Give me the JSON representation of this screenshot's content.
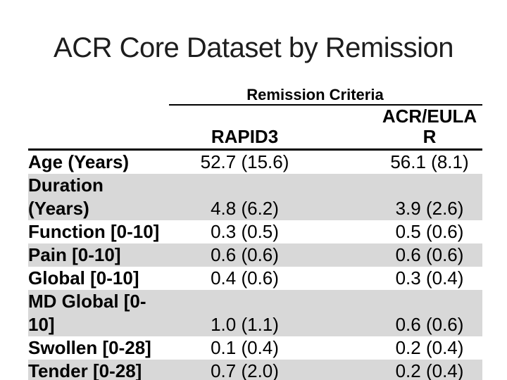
{
  "slide": {
    "title": "ACR Core Dataset by Remission"
  },
  "table": {
    "group_header": "Remission Criteria",
    "columns": [
      "RAPID3",
      "ACR/EULAR"
    ],
    "rows": [
      {
        "label": "Age (Years)",
        "rapid3": "52.7 (15.6)",
        "acr_eular": "56.1 (8.1)"
      },
      {
        "label": "Duration (Years)",
        "rapid3": "4.8 (6.2)",
        "acr_eular": "3.9 (2.6)"
      },
      {
        "label": "Function [0-10]",
        "rapid3": "0.3 (0.5)",
        "acr_eular": "0.5 (0.6)"
      },
      {
        "label": "Pain [0-10]",
        "rapid3": "0.6 (0.6)",
        "acr_eular": "0.6 (0.6)"
      },
      {
        "label": "Global [0-10]",
        "rapid3": "0.4 (0.6)",
        "acr_eular": "0.3 (0.4)"
      },
      {
        "label": "MD Global [0-10]",
        "rapid3": "1.0 (1.1)",
        "acr_eular": "0.6 (0.6)"
      },
      {
        "label": "Swollen [0-28]",
        "rapid3": "0.1 (0.4)",
        "acr_eular": "0.2 (0.4)"
      },
      {
        "label": "Tender [0-28]",
        "rapid3": "0.7 (2.0)",
        "acr_eular": "0.2 (0.4)"
      }
    ]
  },
  "colors": {
    "row_shade": "#d8d8d8",
    "text": "#000000",
    "title_text": "#1d1d1d",
    "rule": "#000000",
    "background": "#ffffff"
  }
}
